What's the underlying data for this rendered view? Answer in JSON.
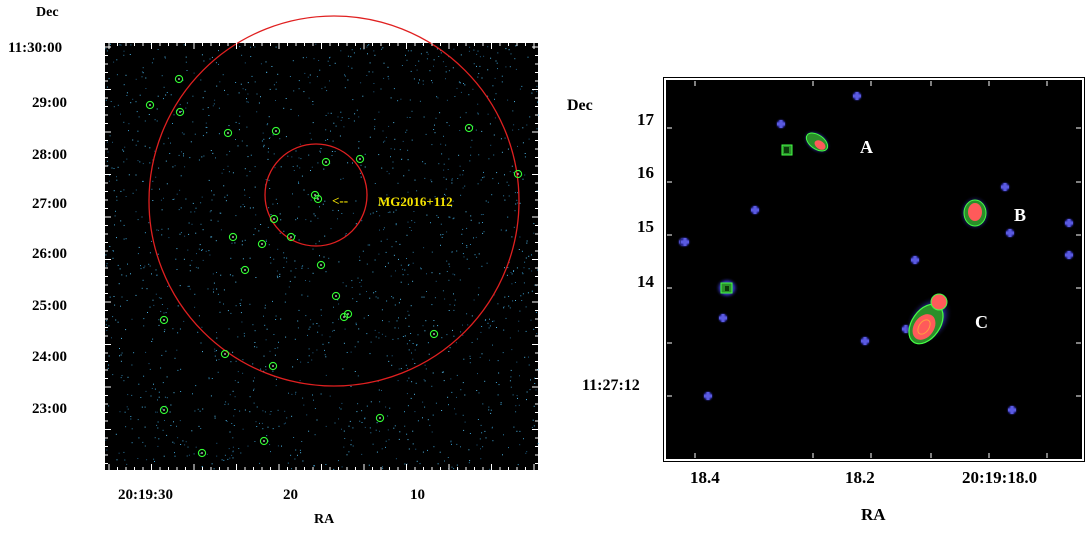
{
  "left_panel": {
    "dec_title": "Dec",
    "ra_title": "RA",
    "dec_ticks": [
      "11:30:00",
      "29:00",
      "28:00",
      "27:00",
      "26:00",
      "25:00",
      "24:00",
      "23:00"
    ],
    "ra_ticks": [
      "20:19:30",
      "20",
      "10"
    ],
    "target_label": "MG2016+112",
    "arrow_glyph": "<--",
    "colors": {
      "background": "#000000",
      "circle": "#e02020",
      "source": "#33ff33",
      "noise": "#3fb0e0",
      "label": "#f5e400"
    }
  },
  "right_panel": {
    "dec_title": "Dec",
    "ra_title": "RA",
    "dec_ticks": [
      "17",
      "16",
      "15",
      "14",
      "11:27:12"
    ],
    "ra_ticks": [
      "18.4",
      "18.2",
      "20:19:18.0"
    ],
    "sources": [
      "A",
      "B",
      "C"
    ],
    "colors": {
      "background": "#000000",
      "contour": "#33ff33",
      "peak": "#ff5a5a",
      "faint": "#4040c0"
    }
  }
}
